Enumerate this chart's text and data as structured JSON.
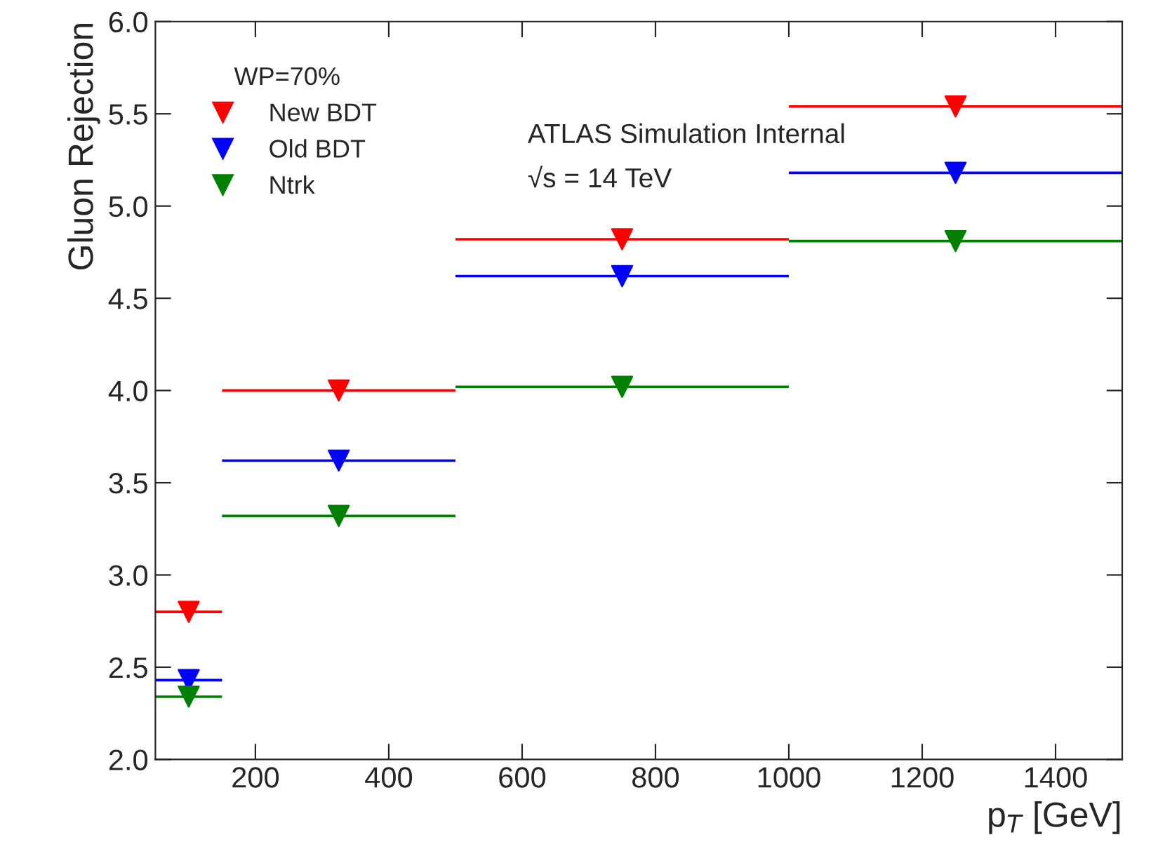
{
  "chart_data": {
    "type": "scatter",
    "xlabel": "p$_{T}$ [GeV]",
    "ylabel": "Gluon Rejection",
    "legend_title": "WP=70%",
    "x": [
      100,
      325,
      750,
      1250
    ],
    "series": [
      {
        "name": "New BDT",
        "color": "#ff0000",
        "values": [
          2.8,
          4.0,
          4.82,
          5.54
        ],
        "xerrors": [
          50,
          175,
          250,
          250
        ]
      },
      {
        "name": "Old BDT",
        "color": "#0000ff",
        "values": [
          2.43,
          3.62,
          4.62,
          5.18
        ],
        "xerrors": [
          50,
          175,
          250,
          250
        ]
      },
      {
        "name": "Ntrk",
        "color": "#008000",
        "values": [
          2.34,
          3.32,
          4.02,
          4.81
        ],
        "xerrors": [
          50,
          175,
          250,
          250
        ]
      }
    ],
    "xlim": [
      50,
      1500
    ],
    "xticks": [
      200,
      400,
      600,
      800,
      1000,
      1200,
      1400
    ],
    "ylim": [
      2.0,
      6.0
    ],
    "yticks": [
      {
        "value": 2.0,
        "label": "2.0"
      },
      {
        "value": 2.5,
        "label": "2.5"
      },
      {
        "value": 3.0,
        "label": "3.0"
      },
      {
        "value": 3.5,
        "label": "3.5"
      },
      {
        "value": 4.0,
        "label": "4.0"
      },
      {
        "value": 4.5,
        "label": "4.5"
      },
      {
        "value": 5.0,
        "label": "5.0"
      },
      {
        "value": 5.5,
        "label": "5.5"
      },
      {
        "value": 6.0,
        "label": "6.0"
      }
    ],
    "annotations": [
      "ATLAS Simulation Internal",
      "√s = 14 TeV"
    ],
    "marker": "triangle",
    "legend": "top left",
    "grid": false
  }
}
